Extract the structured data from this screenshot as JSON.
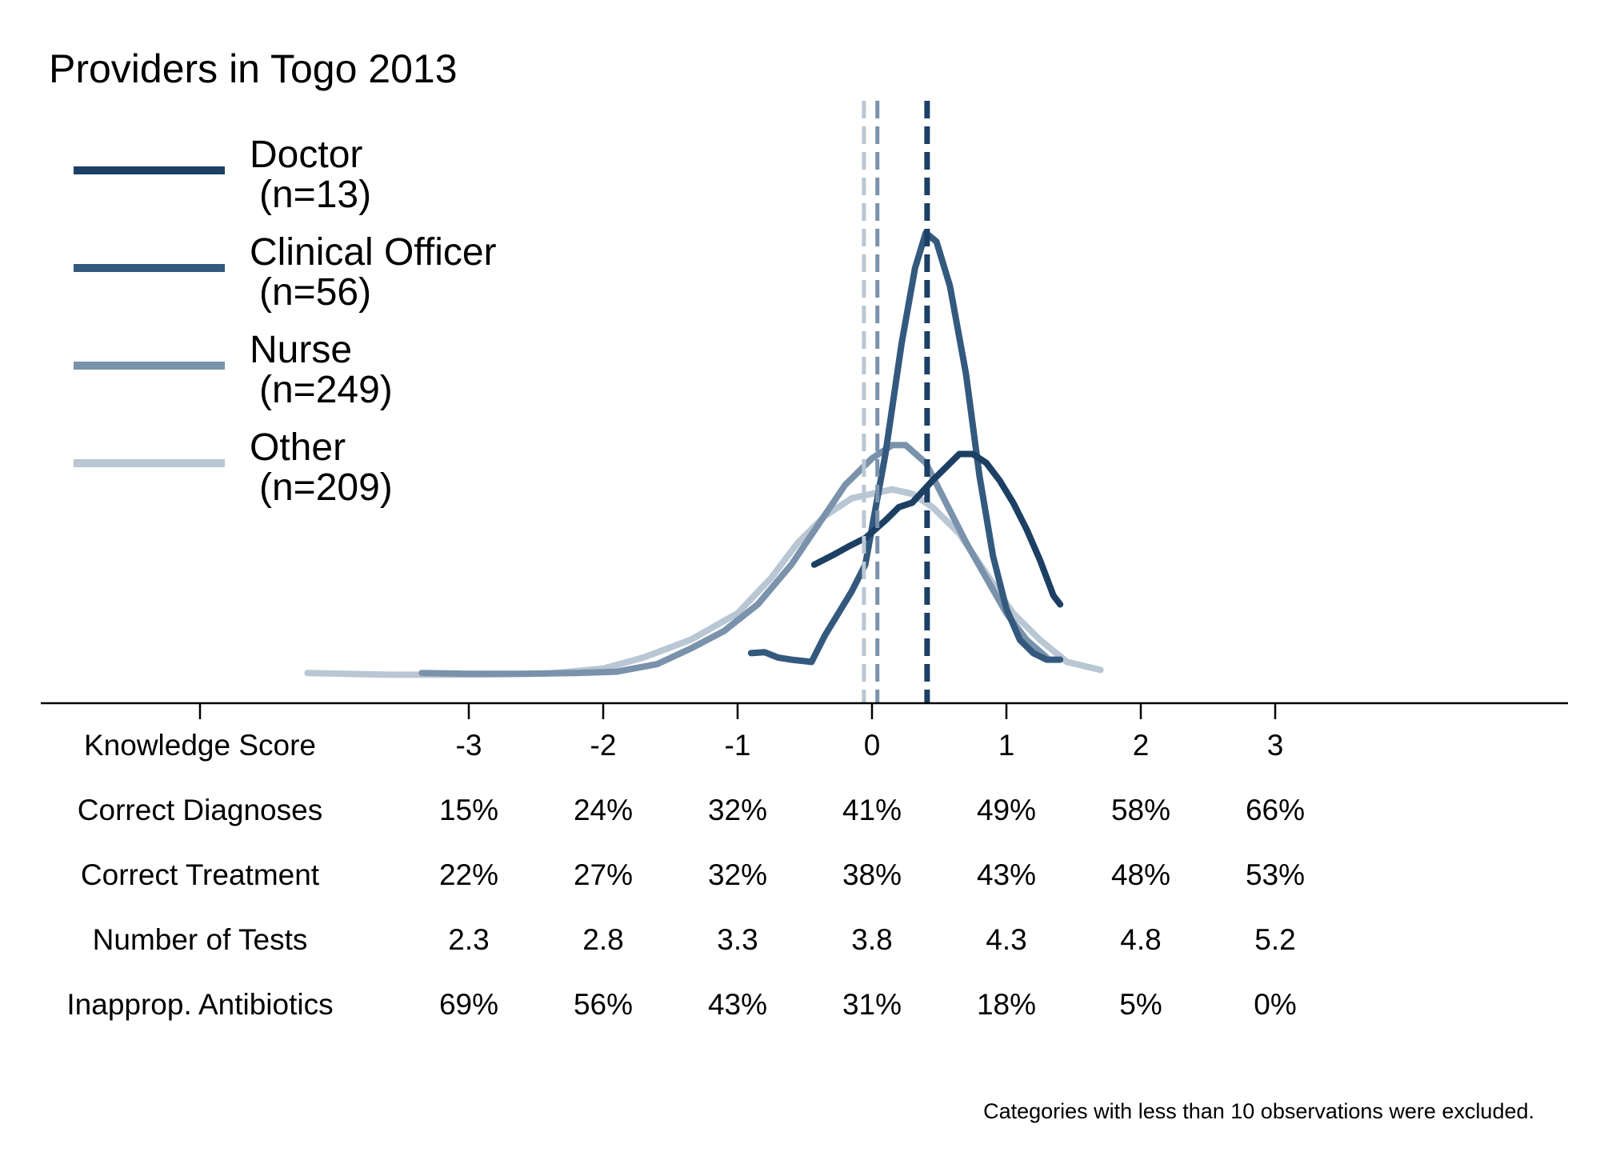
{
  "chart_data": {
    "type": "line",
    "title": "Providers in Togo 2013",
    "footnote": "Categories with less than 10 observations were excluded.",
    "x_axis": {
      "range": [
        -5,
        6.4
      ],
      "ticks": [
        -5,
        -3,
        -2,
        -1,
        0,
        1,
        2,
        3
      ]
    },
    "table": {
      "rows": [
        {
          "label": "Knowledge Score",
          "values": [
            "-3",
            "-2",
            "-1",
            "0",
            "1",
            "2",
            "3"
          ]
        },
        {
          "label": "Correct Diagnoses",
          "values": [
            "15%",
            "24%",
            "32%",
            "41%",
            "49%",
            "58%",
            "66%"
          ]
        },
        {
          "label": "Correct Treatment",
          "values": [
            "22%",
            "27%",
            "32%",
            "38%",
            "43%",
            "48%",
            "53%"
          ]
        },
        {
          "label": "Number of Tests",
          "values": [
            "2.3",
            "2.8",
            "3.3",
            "3.8",
            "4.3",
            "4.8",
            "5.2"
          ]
        },
        {
          "label": "Inapprop. Antibiotics",
          "values": [
            "69%",
            "56%",
            "43%",
            "31%",
            "18%",
            "5%",
            "0%"
          ]
        }
      ]
    },
    "legend_position": "top-left",
    "series": [
      {
        "name": "Doctor",
        "n_label": "(n=13)",
        "color": "#1c3f64",
        "mean": 0.41,
        "points": [
          [
            -0.43,
            0.25
          ],
          [
            -0.3,
            0.27
          ],
          [
            -0.18,
            0.29
          ],
          [
            -0.05,
            0.31
          ],
          [
            0.1,
            0.35
          ],
          [
            0.2,
            0.38
          ],
          [
            0.3,
            0.39
          ],
          [
            0.45,
            0.44
          ],
          [
            0.55,
            0.47
          ],
          [
            0.65,
            0.5
          ],
          [
            0.75,
            0.5
          ],
          [
            0.85,
            0.48
          ],
          [
            0.95,
            0.44
          ],
          [
            1.05,
            0.39
          ],
          [
            1.15,
            0.33
          ],
          [
            1.25,
            0.26
          ],
          [
            1.35,
            0.18
          ],
          [
            1.4,
            0.16
          ]
        ]
      },
      {
        "name": "Clinical Officer",
        "n_label": "(n=56)",
        "color": "#34597e",
        "mean": 0.41,
        "points": [
          [
            -0.9,
            0.05
          ],
          [
            -0.8,
            0.052
          ],
          [
            -0.7,
            0.04
          ],
          [
            -0.6,
            0.035
          ],
          [
            -0.45,
            0.03
          ],
          [
            -0.35,
            0.09
          ],
          [
            -0.25,
            0.14
          ],
          [
            -0.15,
            0.19
          ],
          [
            -0.05,
            0.25
          ],
          [
            0.1,
            0.5
          ],
          [
            0.22,
            0.75
          ],
          [
            0.32,
            0.92
          ],
          [
            0.4,
            1.0
          ],
          [
            0.48,
            0.98
          ],
          [
            0.58,
            0.88
          ],
          [
            0.7,
            0.68
          ],
          [
            0.8,
            0.45
          ],
          [
            0.9,
            0.27
          ],
          [
            1.0,
            0.15
          ],
          [
            1.1,
            0.08
          ],
          [
            1.2,
            0.05
          ],
          [
            1.3,
            0.035
          ],
          [
            1.4,
            0.035
          ]
        ]
      },
      {
        "name": "Nurse",
        "n_label": "(n=249)",
        "color": "#7a92ab",
        "mean": 0.04,
        "points": [
          [
            -3.35,
            0.005
          ],
          [
            -3.0,
            0.003
          ],
          [
            -2.6,
            0.003
          ],
          [
            -2.2,
            0.005
          ],
          [
            -1.9,
            0.008
          ],
          [
            -1.6,
            0.025
          ],
          [
            -1.35,
            0.06
          ],
          [
            -1.1,
            0.1
          ],
          [
            -0.85,
            0.16
          ],
          [
            -0.6,
            0.25
          ],
          [
            -0.4,
            0.34
          ],
          [
            -0.2,
            0.43
          ],
          [
            0.0,
            0.49
          ],
          [
            0.15,
            0.52
          ],
          [
            0.25,
            0.52
          ],
          [
            0.4,
            0.48
          ],
          [
            0.55,
            0.39
          ],
          [
            0.7,
            0.3
          ],
          [
            0.85,
            0.22
          ],
          [
            1.0,
            0.14
          ],
          [
            1.15,
            0.08
          ],
          [
            1.3,
            0.04
          ]
        ]
      },
      {
        "name": "Other",
        "n_label": "(n=209)",
        "color": "#b9c6d3",
        "mean": -0.06,
        "points": [
          [
            -4.2,
            0.005
          ],
          [
            -3.6,
            0.001
          ],
          [
            -3.0,
            0.001
          ],
          [
            -2.4,
            0.004
          ],
          [
            -2.0,
            0.015
          ],
          [
            -1.7,
            0.04
          ],
          [
            -1.35,
            0.08
          ],
          [
            -1.0,
            0.14
          ],
          [
            -0.75,
            0.22
          ],
          [
            -0.55,
            0.3
          ],
          [
            -0.35,
            0.36
          ],
          [
            -0.15,
            0.4
          ],
          [
            0.0,
            0.41
          ],
          [
            0.15,
            0.42
          ],
          [
            0.3,
            0.41
          ],
          [
            0.45,
            0.38
          ],
          [
            0.65,
            0.32
          ],
          [
            0.85,
            0.23
          ],
          [
            1.05,
            0.14
          ],
          [
            1.25,
            0.08
          ],
          [
            1.45,
            0.03
          ],
          [
            1.7,
            0.012
          ]
        ]
      }
    ]
  }
}
